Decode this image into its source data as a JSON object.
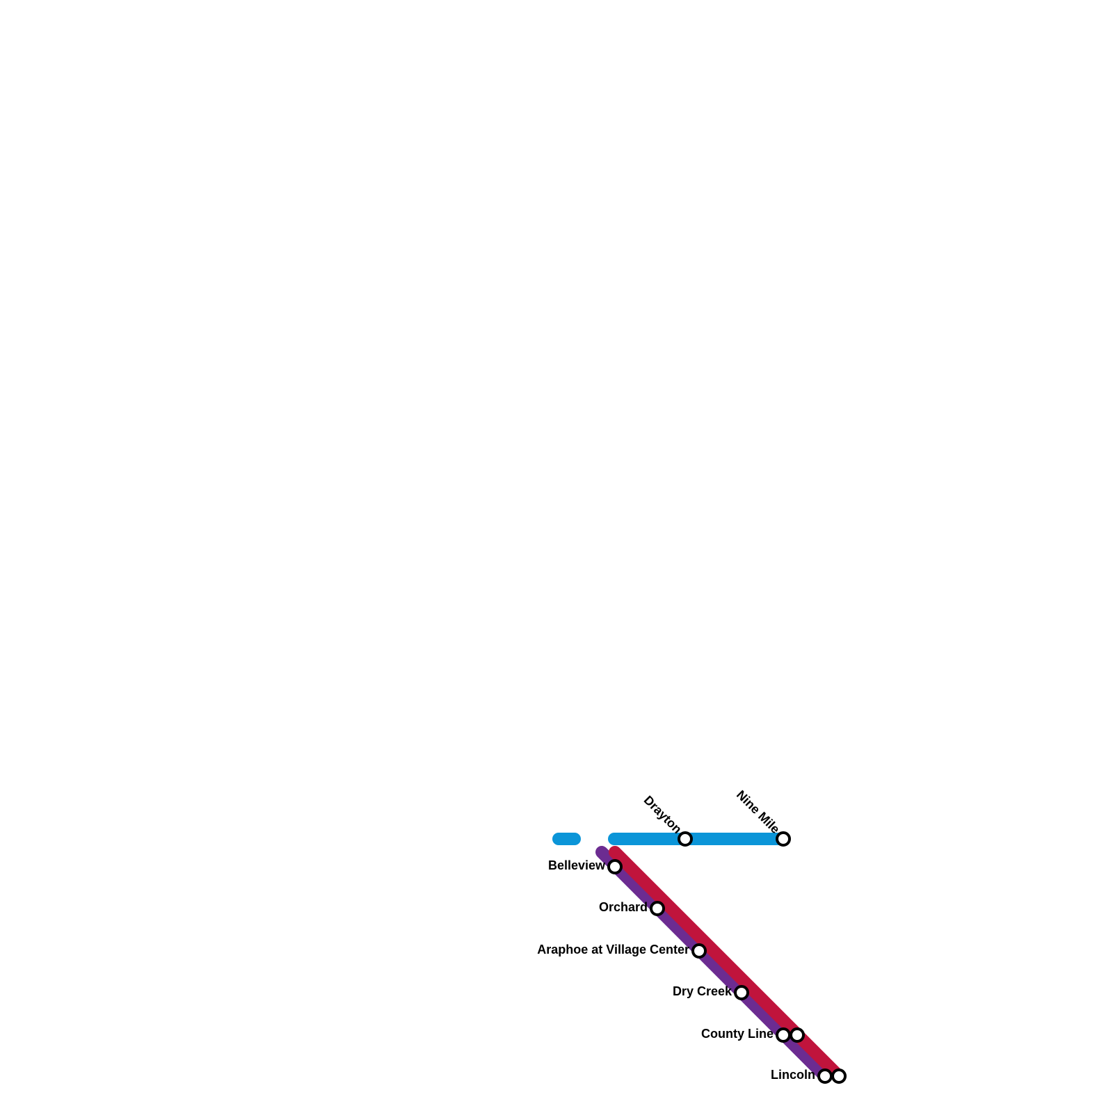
{
  "stations": [
    {
      "label": "Drayton"
    },
    {
      "label": "Nine Mile"
    },
    {
      "label": "Belleview"
    },
    {
      "label": "Orchard"
    },
    {
      "label": "Araphoe at Village Center"
    },
    {
      "label": "Dry Creek"
    },
    {
      "label": "County Line"
    },
    {
      "label": "Lincoln"
    }
  ]
}
